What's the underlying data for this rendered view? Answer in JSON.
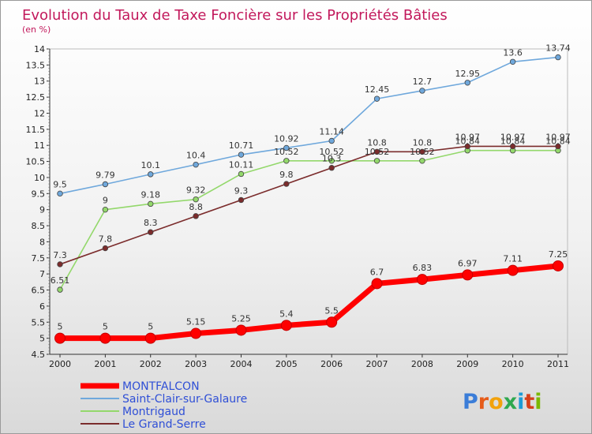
{
  "chart_data": {
    "type": "line",
    "title": "Evolution du Taux de Taxe Foncière sur les Propriétés Bâties",
    "subtitle": "(en %)",
    "xlabel": "",
    "ylabel": "",
    "x": [
      "2000",
      "2001",
      "2002",
      "2003",
      "2004",
      "2005",
      "2006",
      "2007",
      "2008",
      "2009",
      "2010",
      "2011"
    ],
    "yticks": [
      "4.5",
      "5",
      "5.5",
      "6",
      "6.5",
      "7",
      "7.5",
      "8",
      "8.5",
      "9",
      "9.5",
      "10",
      "10.5",
      "11",
      "11.5",
      "12",
      "12.5",
      "13",
      "13.5",
      "14"
    ],
    "ylim": [
      4.5,
      14
    ],
    "series": [
      {
        "name": "MONTFALCON",
        "color": "#ff0000",
        "values": [
          5,
          5,
          5,
          5.15,
          5.25,
          5.4,
          5.5,
          6.7,
          6.83,
          6.97,
          7.11,
          7.25
        ],
        "labels": [
          "5",
          "5",
          "5",
          "5.15",
          "5.25",
          "5.4",
          "5.5",
          "6.7",
          "6.83",
          "6.97",
          "7.11",
          "7.25"
        ]
      },
      {
        "name": "Saint-Clair-sur-Galaure",
        "color": "#6fa8dc",
        "values": [
          9.5,
          9.79,
          10.1,
          10.4,
          10.71,
          10.92,
          11.14,
          12.45,
          12.7,
          12.95,
          13.6,
          13.74
        ],
        "labels": [
          "9.5",
          "9.79",
          "10.1",
          "10.4",
          "10.71",
          "10.92",
          "11.14",
          "12.45",
          "12.7",
          "12.95",
          "13.6",
          "13.74"
        ]
      },
      {
        "name": "Montrigaud",
        "color": "#93d86b",
        "values": [
          6.51,
          9,
          9.18,
          9.32,
          10.11,
          10.52,
          10.52,
          10.52,
          10.52,
          10.84,
          10.84,
          10.84
        ],
        "labels": [
          "6.51",
          "9",
          "9.18",
          "9.32",
          "10.11",
          "10.52",
          "10.52",
          "10.52",
          "10.52",
          "10.84",
          "10.84",
          "10.84"
        ]
      },
      {
        "name": "Le Grand-Serre",
        "color": "#7b2c2c",
        "values": [
          7.3,
          7.8,
          8.3,
          8.8,
          9.3,
          9.8,
          10.3,
          10.8,
          10.8,
          10.97,
          10.97,
          10.97
        ],
        "labels": [
          "7.3",
          "7.8",
          "8.3",
          "8.8",
          "9.3",
          "9.8",
          "10.3",
          "10.8",
          "10.8",
          "10.97",
          "10.97",
          "10.97"
        ]
      }
    ],
    "legend": "bottom-left"
  },
  "watermark": "Proxiti",
  "watermark_letters": [
    "P",
    "r",
    "o",
    "x",
    "i",
    "t",
    "i"
  ],
  "watermark_colors": [
    "#3b7dd8",
    "#e65c1a",
    "#f2a20c",
    "#2fa84f",
    "#1c9bd6",
    "#d6401c",
    "#7ab800"
  ]
}
